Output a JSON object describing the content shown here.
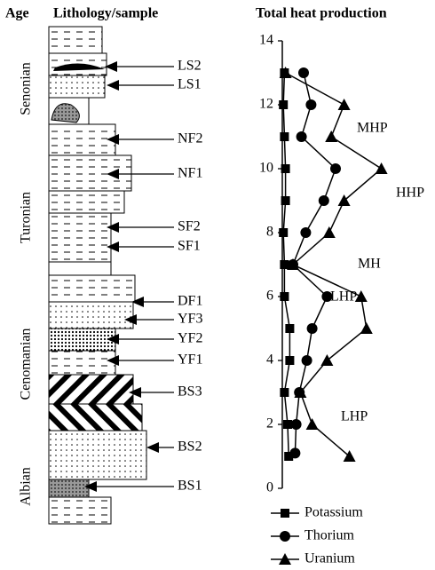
{
  "lithology": {
    "headers": {
      "age": "Age",
      "column": "Lithology/sample"
    },
    "ages": [
      "Senonian",
      "Turonian",
      "Cenomanian",
      "Albian"
    ],
    "samples": [
      "LS2",
      "LS1",
      "NF2",
      "NF1",
      "SF2",
      "SF1",
      "DF1",
      "YF3",
      "YF2",
      "YF1",
      "BS3",
      "BS2",
      "BS1"
    ]
  },
  "chart_data": {
    "type": "line",
    "title": "Total heat production",
    "ylim": [
      0,
      14
    ],
    "yticks": [
      0,
      2,
      4,
      6,
      8,
      10,
      12,
      14
    ],
    "xlim": [
      0,
      10
    ],
    "series": [
      {
        "name": "Potassium",
        "marker": "square",
        "color": "#000000",
        "x": [
          0.2,
          0.1,
          0.2,
          0.3,
          0.3,
          0.1,
          0.2,
          0.2,
          0.7,
          0.7,
          0.2,
          0.5,
          0.6
        ],
        "values": [
          13,
          12,
          11,
          10,
          9,
          8,
          7,
          6,
          5,
          4,
          3,
          2,
          1
        ]
      },
      {
        "name": "Thorium",
        "marker": "circle",
        "color": "#000000",
        "x": [
          2.0,
          2.7,
          1.8,
          5.0,
          3.9,
          2.2,
          1.0,
          4.2,
          2.8,
          2.3,
          1.6,
          1.3,
          1.2
        ],
        "values": [
          13,
          12,
          11,
          10,
          9,
          8,
          7,
          6,
          5,
          4,
          3,
          2,
          1.1
        ]
      },
      {
        "name": "Uranium",
        "marker": "triangle",
        "color": "#000000",
        "x": [
          0.3,
          5.8,
          4.6,
          9.3,
          5.8,
          4.4,
          1.0,
          7.4,
          7.9,
          4.2,
          1.7,
          2.8,
          6.3
        ],
        "values": [
          13,
          12,
          11,
          10,
          9,
          8,
          7,
          6,
          5,
          4,
          3,
          2,
          1
        ]
      }
    ],
    "annotations": [
      "MHP",
      "HHP",
      "MH",
      "LHP",
      "LHP"
    ]
  }
}
